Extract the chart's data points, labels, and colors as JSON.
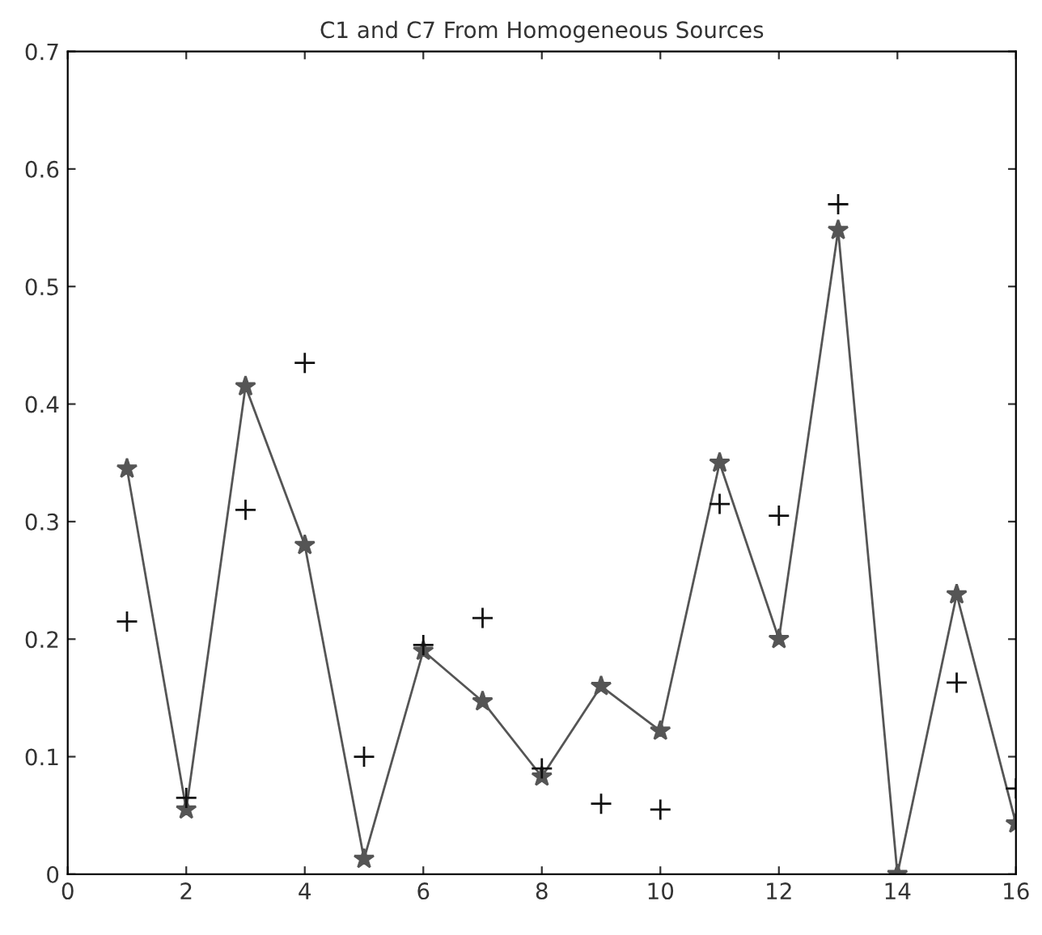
{
  "chart_data": {
    "type": "line",
    "title": "C1 and C7 From Homogeneous Sources",
    "x": [
      1,
      2,
      3,
      4,
      5,
      6,
      7,
      8,
      9,
      10,
      11,
      12,
      13,
      14,
      15,
      16
    ],
    "series": [
      {
        "marker": "star",
        "color": "#555555",
        "values": [
          0.345,
          0.055,
          0.415,
          0.28,
          0.013,
          0.19,
          0.147,
          0.083,
          0.16,
          0.122,
          0.35,
          0.2,
          0.548,
          0.0,
          0.238,
          0.043
        ]
      },
      {
        "type": "scatter",
        "marker": "cross",
        "color": "#111111",
        "values": [
          0.215,
          0.065,
          0.31,
          0.435,
          0.1,
          0.195,
          0.218,
          0.09,
          0.06,
          0.055,
          0.315,
          0.305,
          0.57,
          null,
          0.163,
          0.073
        ]
      }
    ],
    "xlim": [
      0,
      16
    ],
    "xticks": [
      0,
      2,
      4,
      6,
      8,
      10,
      12,
      14,
      16
    ],
    "ylim": [
      0,
      0.7
    ],
    "yticks": [
      0,
      0.1,
      0.2,
      0.3,
      0.4,
      0.5,
      0.6,
      0.7
    ],
    "grid": false,
    "legend": false
  }
}
